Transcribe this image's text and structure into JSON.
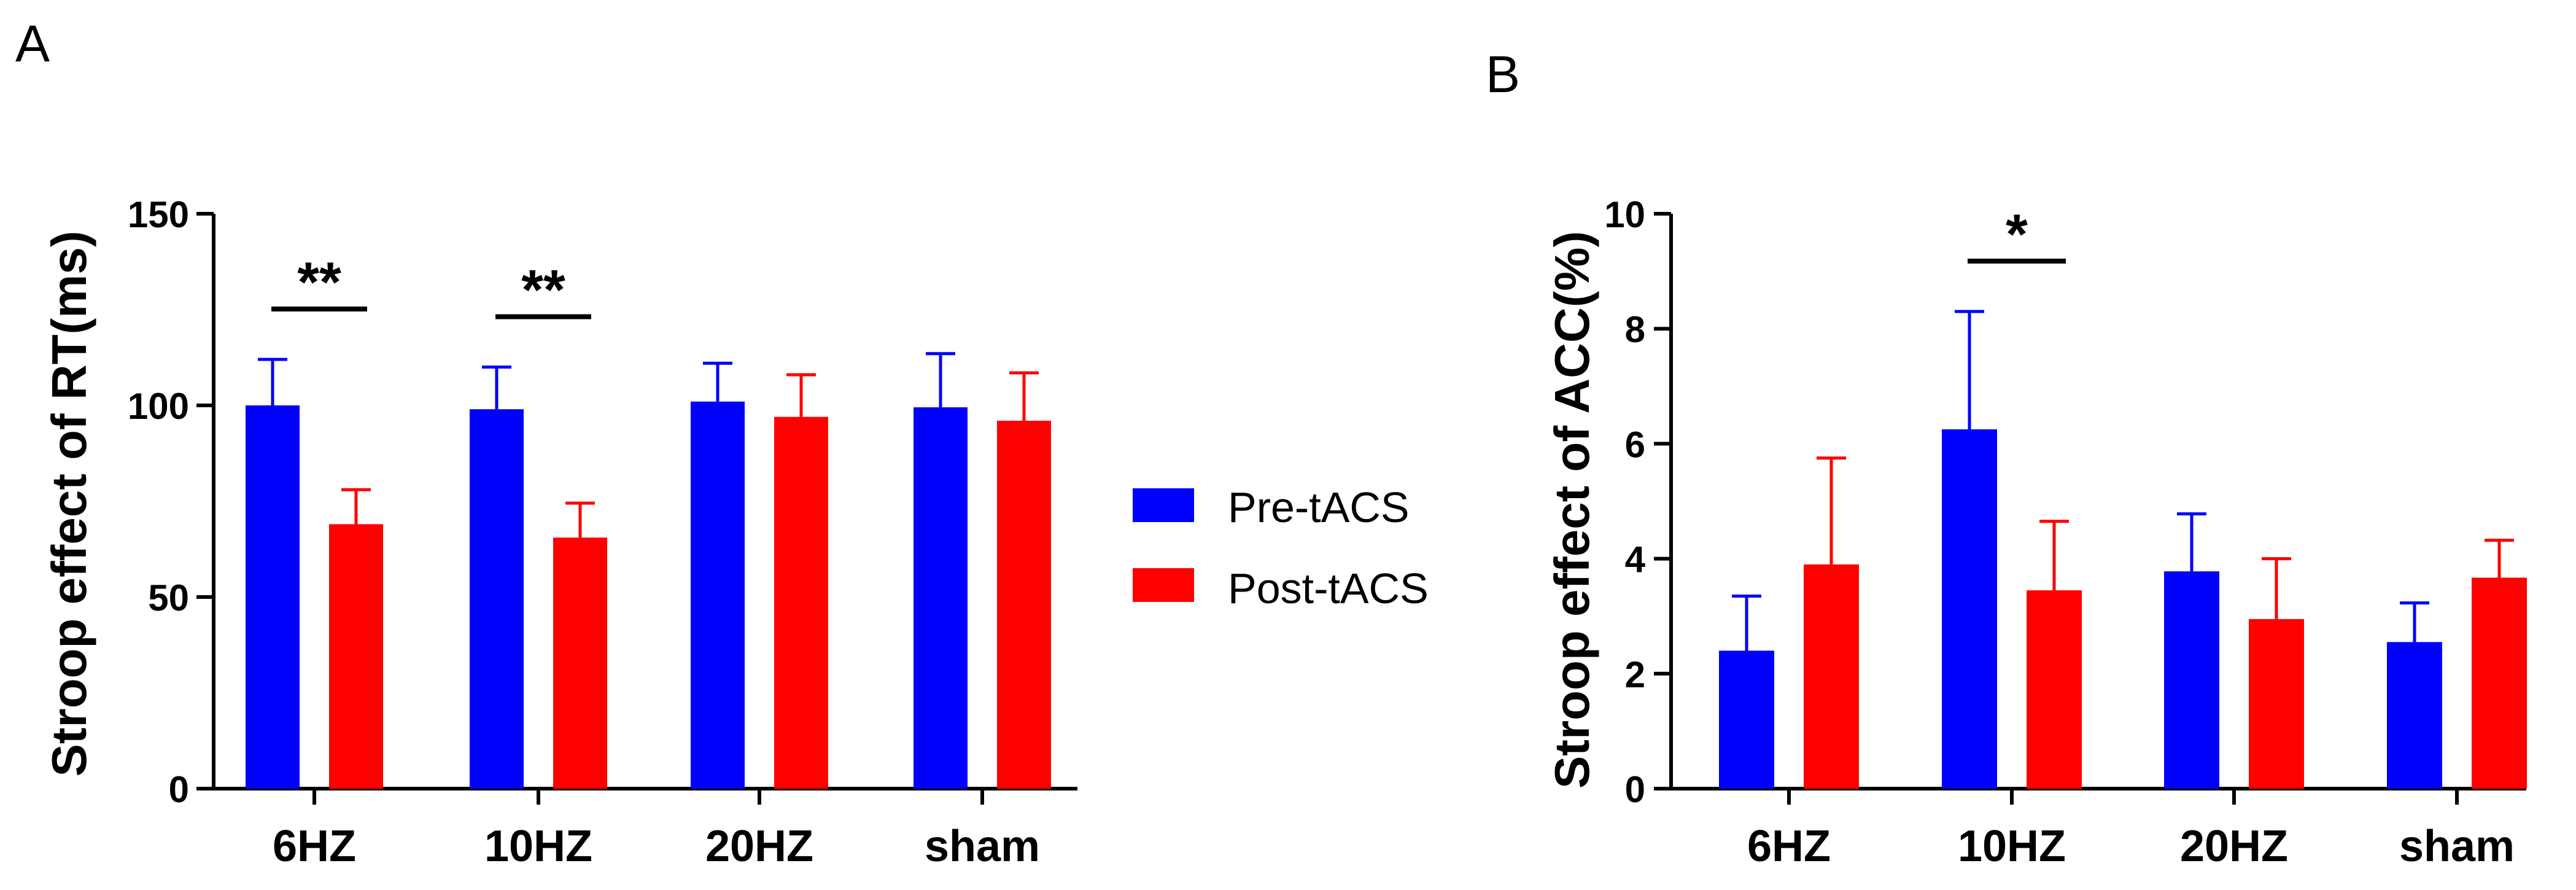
{
  "colors": {
    "pre": "#0000ff",
    "post": "#ff0000",
    "axis": "#000000"
  },
  "legend": {
    "items": [
      {
        "label": "Pre-tACS",
        "color": "#0000ff"
      },
      {
        "label": "Post-tACS",
        "color": "#ff0000"
      }
    ]
  },
  "chart_data": [
    {
      "panel": "A",
      "type": "bar",
      "ylabel": "Stroop effect of RT(ms)",
      "ylim": [
        0,
        150
      ],
      "yticks": [
        0,
        50,
        100,
        150
      ],
      "categories": [
        "6HZ",
        "10HZ",
        "20HZ",
        "sham"
      ],
      "series": [
        {
          "name": "Pre-tACS",
          "values": [
            100,
            99,
            101,
            99.5
          ],
          "errors": [
            12,
            11,
            10,
            14
          ]
        },
        {
          "name": "Post-tACS",
          "values": [
            69,
            65.5,
            97,
            96
          ],
          "errors": [
            9,
            9,
            11,
            12.5
          ]
        }
      ],
      "significance": [
        {
          "category": "6HZ",
          "label": "**"
        },
        {
          "category": "10HZ",
          "label": "**"
        }
      ]
    },
    {
      "panel": "B",
      "type": "bar",
      "ylabel": "Stroop effect of ACC(%)",
      "ylim": [
        0,
        10
      ],
      "yticks": [
        0,
        2,
        4,
        6,
        8,
        10
      ],
      "categories": [
        "6HZ",
        "10HZ",
        "20HZ",
        "sham"
      ],
      "series": [
        {
          "name": "Pre-tACS",
          "values": [
            2.4,
            6.25,
            3.78,
            2.55
          ],
          "errors": [
            0.95,
            2.05,
            1.0,
            0.68
          ]
        },
        {
          "name": "Post-tACS",
          "values": [
            3.9,
            3.45,
            2.95,
            3.67
          ],
          "errors": [
            1.85,
            1.2,
            1.05,
            0.65
          ]
        }
      ],
      "significance": [
        {
          "category": "10HZ",
          "label": "*"
        }
      ]
    }
  ]
}
